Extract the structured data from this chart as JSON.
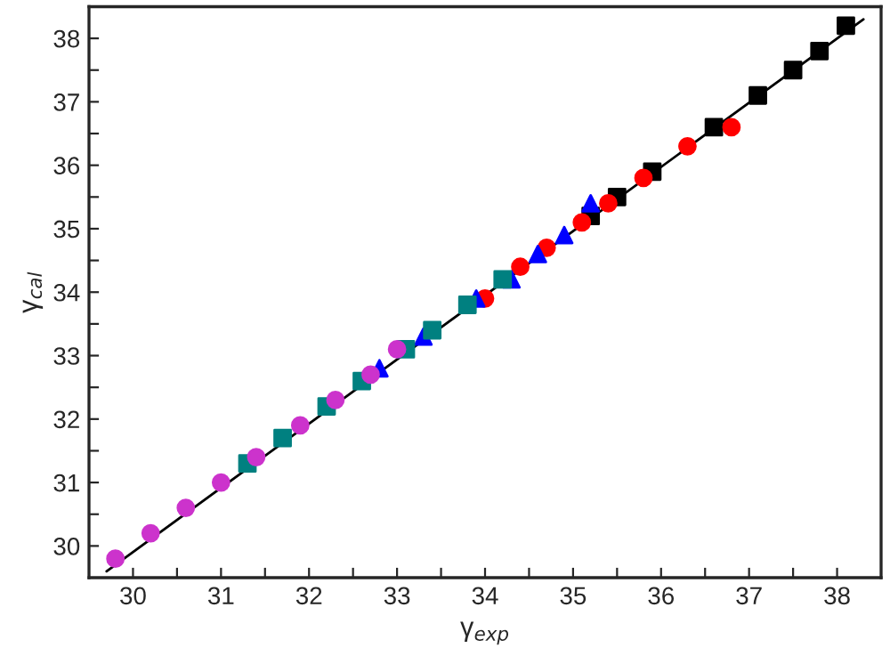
{
  "chart_data": {
    "type": "scatter",
    "xlabel": "γ$_{exp}$",
    "ylabel": "γ$_{cal}$",
    "xlim": [
      29.5,
      38.5
    ],
    "ylim": [
      29.5,
      38.5
    ],
    "xticks": [
      30,
      {
        "value": 30.5,
        "label": null
      },
      31,
      {
        "value": 31.5,
        "label": null
      },
      32,
      {
        "value": 32.5,
        "label": null
      },
      33,
      {
        "value": 33.5,
        "label": null
      },
      34,
      {
        "value": 34.5,
        "label": null
      },
      35,
      {
        "value": 35.5,
        "label": null
      },
      36,
      {
        "value": 36.5,
        "label": null
      },
      37,
      {
        "value": 37.5,
        "label": null
      },
      38
    ],
    "yticks": [
      30,
      {
        "value": 30.5,
        "label": null
      },
      31,
      {
        "value": 31.5,
        "label": null
      },
      32,
      {
        "value": 32.5,
        "label": null
      },
      33,
      {
        "value": 33.5,
        "label": null
      },
      34,
      {
        "value": 34.5,
        "label": null
      },
      35,
      {
        "value": 35.5,
        "label": null
      },
      36,
      {
        "value": 36.5,
        "label": null
      },
      37,
      {
        "value": 37.5,
        "label": null
      },
      38
    ],
    "grid": false,
    "legend": false,
    "series": [
      {
        "type": "line",
        "color": "#000000",
        "marker": "none",
        "line_style": "solid",
        "x": [
          29.7,
          38.3
        ],
        "values": [
          29.6,
          38.3
        ]
      },
      {
        "color": "#000000",
        "marker": "square",
        "x": [
          35.2,
          35.5,
          35.9,
          36.6,
          37.1,
          37.5,
          37.8,
          38.1
        ],
        "values": [
          35.2,
          35.5,
          35.9,
          36.6,
          37.1,
          37.5,
          37.8,
          38.2
        ]
      },
      {
        "color": "#ff0000",
        "marker": "circle",
        "x": [
          34.0,
          34.4,
          34.7,
          35.1,
          35.4,
          35.8,
          36.3,
          36.8
        ],
        "values": [
          33.9,
          34.4,
          34.7,
          35.1,
          35.4,
          35.8,
          36.3,
          36.6
        ]
      },
      {
        "color": "#0000ff",
        "marker": "triangle",
        "x": [
          32.8,
          33.3,
          33.9,
          34.3,
          34.6,
          34.9,
          35.2
        ],
        "values": [
          32.8,
          33.3,
          33.9,
          34.2,
          34.6,
          34.9,
          35.4
        ]
      },
      {
        "color": "#008080",
        "marker": "square",
        "x": [
          31.3,
          31.7,
          32.2,
          32.6,
          33.1,
          33.4,
          33.8,
          34.2
        ],
        "values": [
          31.3,
          31.7,
          32.2,
          32.6,
          33.1,
          33.4,
          33.8,
          34.2
        ]
      },
      {
        "color": "#cc33cc",
        "marker": "circle",
        "x": [
          29.8,
          30.2,
          30.6,
          31.0,
          31.4,
          31.9,
          32.3,
          32.7,
          33.0
        ],
        "values": [
          29.8,
          30.2,
          30.6,
          31.0,
          31.4,
          31.9,
          32.3,
          32.7,
          33.1
        ]
      }
    ]
  }
}
